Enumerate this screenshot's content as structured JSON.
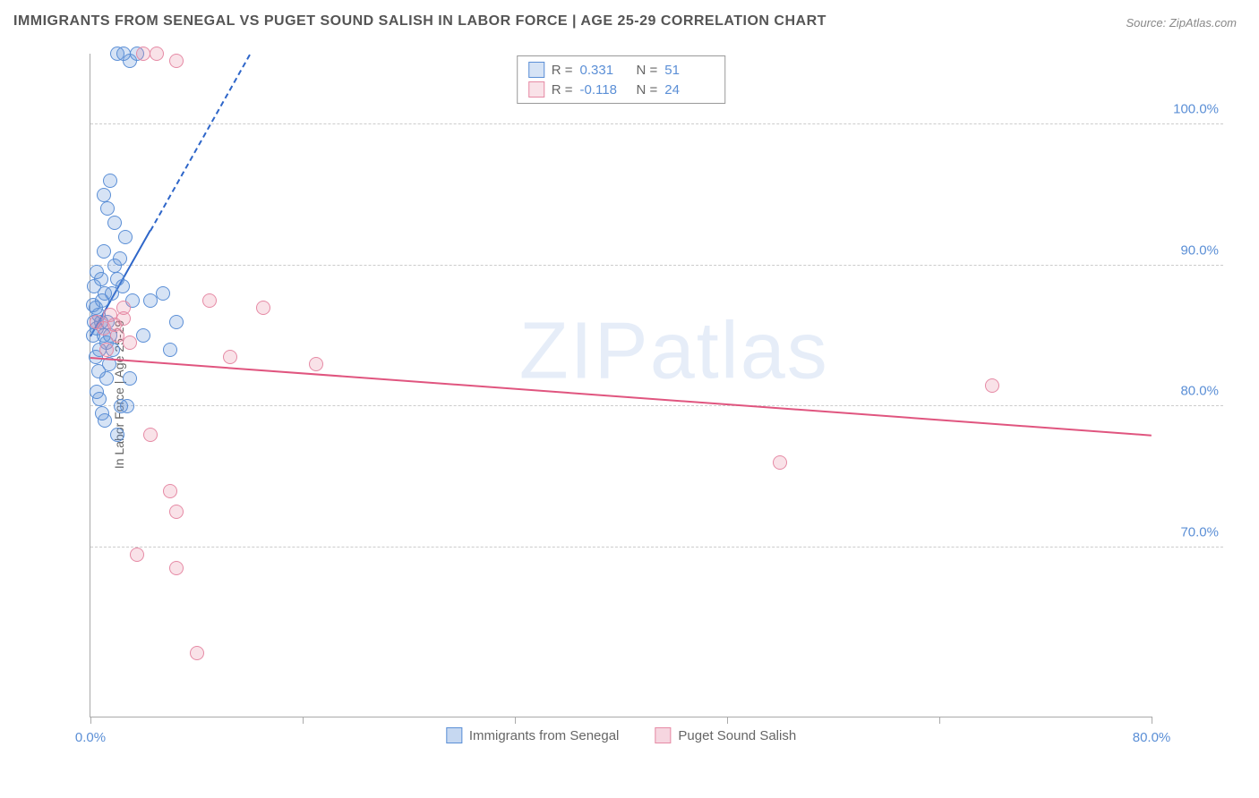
{
  "title": "IMMIGRANTS FROM SENEGAL VS PUGET SOUND SALISH IN LABOR FORCE | AGE 25-29 CORRELATION CHART",
  "source": "Source: ZipAtlas.com",
  "y_axis_label": "In Labor Force | Age 25-29",
  "watermark_bold": "ZIP",
  "watermark_thin": "atlas",
  "chart": {
    "type": "scatter",
    "background_color": "#ffffff",
    "grid_color": "#cccccc",
    "axis_color": "#aaaaaa",
    "tick_label_color": "#5b8fd6",
    "tick_fontsize": 15,
    "xlim": [
      0,
      80
    ],
    "ylim": [
      58,
      105
    ],
    "x_ticks": [
      0,
      16,
      32,
      48,
      64,
      80
    ],
    "x_tick_labels_shown": {
      "0": "0.0%",
      "80": "80.0%"
    },
    "y_ticks": [
      70,
      80,
      90,
      100
    ],
    "y_tick_labels": {
      "70": "70.0%",
      "80": "80.0%",
      "90": "90.0%",
      "100": "100.0%"
    },
    "marker_radius": 8,
    "marker_border_width": 1.5,
    "marker_fill_opacity": 0.25,
    "series": [
      {
        "name": "Immigrants from Senegal",
        "color_border": "#5b8fd6",
        "color_fill": "rgba(91,143,214,0.25)",
        "R": "0.331",
        "N": "51",
        "trend": {
          "x1": 0,
          "y1": 85,
          "x2": 4.5,
          "y2": 92.5,
          "color": "#2e66c9",
          "width": 2
        },
        "trend_extend": {
          "x1": 4.5,
          "y1": 92.5,
          "x2": 12,
          "y2": 105,
          "color": "#2e66c9"
        },
        "points": [
          [
            0.2,
            85
          ],
          [
            0.3,
            86
          ],
          [
            0.4,
            87
          ],
          [
            0.5,
            85.5
          ],
          [
            0.6,
            86.5
          ],
          [
            0.7,
            84
          ],
          [
            0.8,
            86
          ],
          [
            0.9,
            87.5
          ],
          [
            1.0,
            85
          ],
          [
            1.1,
            88
          ],
          [
            1.2,
            84.5
          ],
          [
            1.3,
            86
          ],
          [
            1.4,
            83
          ],
          [
            1.5,
            85
          ],
          [
            1.6,
            88
          ],
          [
            1.7,
            84
          ],
          [
            1.8,
            90
          ],
          [
            2.0,
            89
          ],
          [
            2.2,
            90.5
          ],
          [
            2.4,
            88.5
          ],
          [
            2.6,
            92
          ],
          [
            2.8,
            80
          ],
          [
            3.0,
            82
          ],
          [
            3.2,
            87.5
          ],
          [
            0.5,
            81
          ],
          [
            0.7,
            80.5
          ],
          [
            0.9,
            79.5
          ],
          [
            1.1,
            79
          ],
          [
            0.4,
            83.5
          ],
          [
            0.6,
            82.5
          ],
          [
            1.0,
            95
          ],
          [
            1.3,
            94
          ],
          [
            1.5,
            96
          ],
          [
            1.8,
            93
          ],
          [
            2.0,
            105
          ],
          [
            2.5,
            105
          ],
          [
            3.0,
            104.5
          ],
          [
            3.5,
            105
          ],
          [
            4.0,
            85
          ],
          [
            4.5,
            87.5
          ],
          [
            5.5,
            88
          ],
          [
            6.0,
            84
          ],
          [
            6.5,
            86
          ],
          [
            2.0,
            78
          ],
          [
            2.3,
            80
          ],
          [
            1.2,
            82
          ],
          [
            0.8,
            89
          ],
          [
            0.3,
            88.5
          ],
          [
            0.2,
            87.2
          ],
          [
            0.5,
            89.5
          ],
          [
            1.0,
            91
          ]
        ]
      },
      {
        "name": "Puget Sound Salish",
        "color_border": "#e68aa5",
        "color_fill": "rgba(230,138,165,0.25)",
        "R": "-0.118",
        "N": "24",
        "trend": {
          "x1": 0,
          "y1": 83.5,
          "x2": 80,
          "y2": 78,
          "color": "#e0557f",
          "width": 2
        },
        "points": [
          [
            0.5,
            86
          ],
          [
            1.0,
            85.5
          ],
          [
            1.5,
            86.5
          ],
          [
            2.0,
            85
          ],
          [
            2.5,
            87
          ],
          [
            3.0,
            84.5
          ],
          [
            4.0,
            105
          ],
          [
            5.0,
            105
          ],
          [
            6.5,
            104.5
          ],
          [
            9.0,
            87.5
          ],
          [
            13.0,
            87
          ],
          [
            17.0,
            83
          ],
          [
            10.5,
            83.5
          ],
          [
            4.5,
            78
          ],
          [
            6.0,
            74
          ],
          [
            6.5,
            72.5
          ],
          [
            3.5,
            69.5
          ],
          [
            6.5,
            68.5
          ],
          [
            8.0,
            62.5
          ],
          [
            52.0,
            76
          ],
          [
            68.0,
            81.5
          ],
          [
            1.2,
            84
          ],
          [
            1.8,
            85.8
          ],
          [
            2.5,
            86.2
          ]
        ]
      }
    ],
    "legend_bottom": [
      {
        "label": "Immigrants from Senegal",
        "border": "#5b8fd6",
        "fill": "rgba(91,143,214,0.35)"
      },
      {
        "label": "Puget Sound Salish",
        "border": "#e68aa5",
        "fill": "rgba(230,138,165,0.35)"
      }
    ],
    "legend_top_labels": {
      "R": "R =",
      "N": "N ="
    }
  }
}
